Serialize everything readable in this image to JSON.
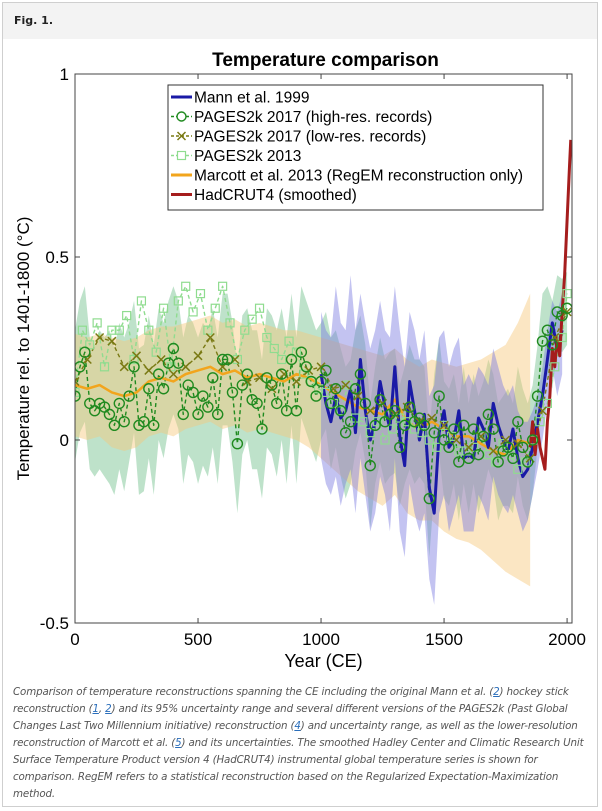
{
  "figure": {
    "label": "Fig. 1.",
    "caption_parts": [
      {
        "text": "Comparison of temperature reconstructions spanning the CE including the original Mann et al. ("
      },
      {
        "link": "2"
      },
      {
        "text": ") hockey stick reconstruction ("
      },
      {
        "link": "1"
      },
      {
        "text": ", "
      },
      {
        "link": "2"
      },
      {
        "text": ") and its 95% uncertainty range and several different versions of the PAGES2k (Past Global Changes Last Two Millennium initiative) reconstruction ("
      },
      {
        "link": "4"
      },
      {
        "text": ") and uncertainty range, as well as the lower-resolution reconstruction of Marcott et al. ("
      },
      {
        "link": "5"
      },
      {
        "text": ") and its uncertainties. The smoothed Hadley Center and Climatic Research Unit Surface Temperature Product version 4 (HadCRUT4) instrumental global temperature series is shown for comparison. RegEM refers to a statistical reconstruction based on the Regularized Expectation-Maximization method."
      }
    ]
  },
  "chart_data": {
    "type": "line",
    "title": "Temperature comparison",
    "xlabel": "Year (CE)",
    "ylabel": "Temperature rel. to 1401-1800 (°C)",
    "xlim": [
      0,
      2020
    ],
    "ylim": [
      -0.5,
      1
    ],
    "xticks": [
      0,
      500,
      1000,
      1500,
      2000
    ],
    "yticks": [
      -0.5,
      0,
      0.5,
      1
    ],
    "ytick_labels": [
      "-0.5",
      "0",
      "0.5",
      "1"
    ],
    "grid": false,
    "legend_position": "top-center",
    "series": [
      {
        "name": "Mann et al. 1999",
        "color": "#1a1aa6",
        "style": "line",
        "x": [
          1000,
          1020,
          1040,
          1060,
          1080,
          1100,
          1120,
          1140,
          1160,
          1180,
          1200,
          1220,
          1240,
          1260,
          1280,
          1300,
          1320,
          1340,
          1360,
          1380,
          1400,
          1420,
          1440,
          1460,
          1480,
          1500,
          1520,
          1540,
          1560,
          1580,
          1600,
          1620,
          1640,
          1660,
          1680,
          1700,
          1720,
          1740,
          1760,
          1780,
          1800,
          1820,
          1840,
          1860,
          1880,
          1900,
          1920,
          1940,
          1960,
          1980
        ],
        "y": [
          0.18,
          0.1,
          0.05,
          0.12,
          0.06,
          0.08,
          0.14,
          0.02,
          0.22,
          0.08,
          0.0,
          0.05,
          0.16,
          0.09,
          0.03,
          0.2,
          0.01,
          -0.07,
          0.16,
          0.08,
          0.0,
          0.07,
          -0.13,
          -0.2,
          0.02,
          0.08,
          -0.02,
          0.0,
          0.08,
          -0.05,
          -0.04,
          -0.05,
          0.06,
          0.03,
          -0.02,
          0.1,
          0.04,
          0.0,
          -0.03,
          0.03,
          -0.05,
          -0.1,
          -0.08,
          -0.02,
          0.05,
          0.12,
          0.22,
          0.32,
          0.25,
          0.3
        ],
        "band": {
          "color": "#7b7be0",
          "upper": [
            0.35,
            0.3,
            0.28,
            0.42,
            0.32,
            0.3,
            0.45,
            0.3,
            0.4,
            0.32,
            0.25,
            0.3,
            0.38,
            0.3,
            0.28,
            0.42,
            0.3,
            0.2,
            0.35,
            0.3,
            0.22,
            0.3,
            0.12,
            0.15,
            0.28,
            0.3,
            0.2,
            0.25,
            0.28,
            0.15,
            0.18,
            0.15,
            0.2,
            0.18,
            0.15,
            0.25,
            0.2,
            0.15,
            0.12,
            0.15,
            0.08,
            0.05,
            0.05,
            0.08,
            0.12,
            0.2,
            0.3,
            0.38,
            0.35,
            0.4
          ],
          "lower": [
            -0.05,
            -0.12,
            -0.15,
            -0.1,
            -0.18,
            -0.12,
            -0.08,
            -0.2,
            -0.05,
            -0.15,
            -0.25,
            -0.2,
            -0.1,
            -0.15,
            -0.25,
            -0.05,
            -0.25,
            -0.32,
            -0.12,
            -0.2,
            -0.25,
            -0.2,
            -0.38,
            -0.45,
            -0.2,
            -0.15,
            -0.25,
            -0.2,
            -0.15,
            -0.25,
            -0.25,
            -0.25,
            -0.15,
            -0.18,
            -0.22,
            -0.1,
            -0.15,
            -0.18,
            -0.2,
            -0.15,
            -0.2,
            -0.25,
            -0.22,
            -0.15,
            -0.08,
            0.0,
            0.1,
            0.2,
            0.12,
            0.18
          ]
        }
      },
      {
        "name": "PAGES2k 2017 (high-res. records)",
        "color": "#1f8a1f",
        "style": "dashed-circle",
        "x": [
          0,
          20,
          40,
          60,
          80,
          100,
          120,
          140,
          160,
          180,
          200,
          220,
          240,
          260,
          280,
          300,
          320,
          340,
          360,
          380,
          400,
          420,
          440,
          460,
          480,
          500,
          520,
          540,
          560,
          580,
          600,
          620,
          640,
          660,
          680,
          700,
          720,
          740,
          760,
          780,
          800,
          820,
          840,
          860,
          880,
          900,
          920,
          940,
          960,
          980,
          1000,
          1020,
          1040,
          1060,
          1080,
          1100,
          1120,
          1140,
          1160,
          1180,
          1200,
          1220,
          1240,
          1260,
          1280,
          1300,
          1320,
          1340,
          1360,
          1380,
          1400,
          1420,
          1440,
          1460,
          1480,
          1500,
          1520,
          1540,
          1560,
          1580,
          1600,
          1620,
          1640,
          1660,
          1680,
          1700,
          1720,
          1740,
          1760,
          1780,
          1800,
          1820,
          1840,
          1860,
          1880,
          1900,
          1920,
          1940,
          1960,
          1980,
          2000
        ],
        "y": [
          0.12,
          0.2,
          0.24,
          0.1,
          0.08,
          0.1,
          0.09,
          0.07,
          0.04,
          0.1,
          0.05,
          0.12,
          0.2,
          0.04,
          0.05,
          0.14,
          0.04,
          0.18,
          0.14,
          0.21,
          0.25,
          0.21,
          0.07,
          0.15,
          0.13,
          0.07,
          0.12,
          0.09,
          0.17,
          0.07,
          0.22,
          0.22,
          0.13,
          -0.01,
          0.15,
          0.18,
          0.11,
          0.1,
          0.03,
          0.17,
          0.15,
          0.1,
          0.18,
          0.08,
          0.22,
          0.08,
          0.24,
          0.2,
          0.16,
          0.12,
          0.16,
          0.19,
          0.1,
          0.14,
          0.08,
          0.02,
          0.05,
          0.14,
          0.18,
          0.1,
          -0.07,
          0.04,
          0.11,
          0.05,
          0.07,
          0.08,
          -0.02,
          0.04,
          0.09,
          0.05,
          0.06,
          0.04,
          -0.16,
          0.02,
          0.12,
          0.0,
          -0.02,
          0.03,
          -0.06,
          0.04,
          -0.05,
          0.03,
          -0.04,
          0.01,
          0.07,
          0.03,
          -0.06,
          -0.03,
          -0.02,
          -0.05,
          0.05,
          -0.02,
          -0.06,
          0.0,
          0.12,
          0.27,
          0.3,
          0.26,
          0.35,
          0.34,
          0.36
        ],
        "band": {
          "color": "#6fbf8a",
          "upper": [
            0.3,
            0.38,
            0.42,
            0.28,
            0.26,
            0.3,
            0.28,
            0.3,
            0.25,
            0.32,
            0.28,
            0.32,
            0.38,
            0.25,
            0.26,
            0.34,
            0.26,
            0.36,
            0.32,
            0.38,
            0.42,
            0.38,
            0.28,
            0.34,
            0.32,
            0.28,
            0.32,
            0.3,
            0.36,
            0.28,
            0.4,
            0.4,
            0.32,
            0.2,
            0.34,
            0.36,
            0.3,
            0.3,
            0.22,
            0.36,
            0.34,
            0.3,
            0.36,
            0.28,
            0.4,
            0.28,
            0.42,
            0.38,
            0.34,
            0.3,
            0.32,
            0.35,
            0.28,
            0.3,
            0.25,
            0.2,
            0.22,
            0.3,
            0.34,
            0.26,
            0.1,
            0.2,
            0.28,
            0.22,
            0.24,
            0.25,
            0.15,
            0.2,
            0.26,
            0.22,
            0.22,
            0.2,
            0.02,
            0.18,
            0.28,
            0.16,
            0.14,
            0.18,
            0.1,
            0.2,
            0.1,
            0.18,
            0.12,
            0.16,
            0.22,
            0.18,
            0.1,
            0.12,
            0.14,
            0.1,
            0.2,
            0.14,
            0.1,
            0.15,
            0.26,
            0.4,
            0.42,
            0.38,
            0.45,
            0.44,
            0.46
          ],
          "lower": [
            -0.06,
            0.02,
            0.05,
            -0.08,
            -0.1,
            -0.08,
            -0.1,
            -0.12,
            -0.15,
            -0.08,
            -0.14,
            -0.06,
            0.02,
            -0.15,
            -0.14,
            -0.05,
            -0.15,
            0.0,
            -0.05,
            0.03,
            0.07,
            0.03,
            -0.12,
            -0.04,
            -0.06,
            -0.12,
            -0.07,
            -0.1,
            -0.02,
            -0.12,
            0.04,
            0.04,
            -0.06,
            -0.2,
            -0.04,
            0.0,
            -0.08,
            -0.08,
            -0.16,
            -0.02,
            -0.04,
            -0.1,
            -0.0,
            -0.12,
            0.04,
            -0.12,
            0.06,
            0.02,
            -0.02,
            -0.06,
            0.0,
            0.03,
            -0.08,
            -0.02,
            -0.1,
            -0.16,
            -0.12,
            -0.03,
            0.02,
            -0.06,
            -0.24,
            -0.12,
            -0.06,
            -0.12,
            -0.1,
            -0.09,
            -0.18,
            -0.12,
            -0.08,
            -0.12,
            -0.1,
            -0.12,
            -0.32,
            -0.14,
            -0.04,
            -0.16,
            -0.18,
            -0.12,
            -0.22,
            -0.12,
            -0.2,
            -0.12,
            -0.2,
            -0.14,
            -0.08,
            -0.12,
            -0.22,
            -0.18,
            -0.18,
            -0.2,
            -0.1,
            -0.18,
            -0.22,
            -0.15,
            -0.02,
            0.14,
            0.18,
            0.14,
            0.25,
            0.24,
            0.26
          ]
        }
      },
      {
        "name": "PAGES2k 2017 (low-res. records)",
        "color": "#7a7a14",
        "style": "dashed-x",
        "x": [
          0,
          50,
          100,
          150,
          200,
          250,
          300,
          350,
          400,
          450,
          500,
          550,
          600,
          650,
          700,
          750,
          800,
          850,
          900,
          950,
          1000,
          1050,
          1100,
          1150,
          1200,
          1250,
          1300,
          1350,
          1400,
          1450,
          1500,
          1550,
          1600,
          1650,
          1700,
          1750,
          1800,
          1850,
          1900,
          1950,
          2000
        ],
        "y": [
          0.16,
          0.22,
          0.28,
          0.27,
          0.2,
          0.23,
          0.19,
          0.22,
          0.18,
          0.2,
          0.23,
          0.28,
          0.2,
          0.22,
          0.16,
          0.17,
          0.14,
          0.18,
          0.16,
          0.19,
          0.2,
          0.14,
          0.15,
          0.12,
          0.08,
          0.1,
          0.07,
          0.09,
          0.05,
          0.06,
          0.04,
          0.0,
          -0.02,
          0.01,
          -0.03,
          0.0,
          -0.01,
          -0.05,
          0.08,
          0.28,
          0.35
        ]
      },
      {
        "name": "PAGES2k 2013",
        "color": "#8fdc8f",
        "style": "dashed-square",
        "x": [
          0,
          30,
          60,
          90,
          120,
          150,
          180,
          210,
          240,
          270,
          300,
          330,
          360,
          390,
          420,
          450,
          480,
          510,
          540,
          570,
          600,
          630,
          660,
          690,
          720,
          750,
          780,
          810,
          840,
          870,
          900,
          930,
          960,
          990,
          1020,
          1050,
          1080,
          1110,
          1140,
          1170,
          1200,
          1230,
          1260,
          1290,
          1320,
          1350,
          1380,
          1410,
          1440,
          1470,
          1500,
          1530,
          1560,
          1590,
          1620,
          1650,
          1680,
          1710,
          1740,
          1770,
          1800,
          1830,
          1860,
          1890,
          1920,
          1950,
          1980,
          2000
        ],
        "y": [
          0.13,
          0.3,
          0.26,
          0.32,
          0.2,
          0.3,
          0.3,
          0.34,
          0.22,
          0.38,
          0.3,
          0.24,
          0.36,
          0.2,
          0.38,
          0.42,
          0.35,
          0.4,
          0.3,
          0.36,
          0.42,
          0.32,
          0.22,
          0.3,
          0.33,
          0.36,
          0.28,
          0.25,
          0.22,
          0.27,
          0.24,
          0.18,
          0.16,
          0.14,
          0.13,
          0.1,
          0.08,
          0.15,
          0.06,
          0.05,
          0.02,
          0.05,
          0.0,
          0.03,
          0.06,
          0.05,
          0.03,
          0.02,
          0.0,
          -0.02,
          0.04,
          0.01,
          -0.03,
          -0.03,
          -0.02,
          0.01,
          -0.04,
          -0.06,
          -0.01,
          -0.04,
          -0.08,
          -0.06,
          0.0,
          0.05,
          0.1,
          0.2,
          0.28,
          0.4
        ]
      },
      {
        "name": "Marcott et al. 2013 (RegEM reconstruction only)",
        "color": "#f2a51d",
        "style": "line",
        "x": [
          0,
          50,
          100,
          150,
          200,
          250,
          300,
          350,
          400,
          450,
          500,
          550,
          600,
          650,
          700,
          750,
          800,
          850,
          900,
          950,
          1000,
          1050,
          1100,
          1150,
          1200,
          1250,
          1300,
          1350,
          1400,
          1450,
          1500,
          1550,
          1600,
          1650,
          1700,
          1750,
          1800,
          1850
        ],
        "y": [
          0.15,
          0.14,
          0.15,
          0.13,
          0.12,
          0.13,
          0.16,
          0.17,
          0.16,
          0.18,
          0.19,
          0.2,
          0.18,
          0.19,
          0.17,
          0.18,
          0.17,
          0.16,
          0.18,
          0.17,
          0.15,
          0.13,
          0.11,
          0.09,
          0.08,
          0.07,
          0.11,
          0.05,
          0.03,
          0.05,
          0.03,
          0.01,
          0.01,
          -0.01,
          -0.03,
          -0.04,
          0.0,
          -0.01
        ],
        "band": {
          "color": "#f7c87a",
          "upper": [
            0.29,
            0.28,
            0.29,
            0.28,
            0.27,
            0.28,
            0.3,
            0.31,
            0.31,
            0.32,
            0.33,
            0.34,
            0.32,
            0.33,
            0.31,
            0.32,
            0.31,
            0.3,
            0.3,
            0.29,
            0.28,
            0.27,
            0.26,
            0.25,
            0.24,
            0.23,
            0.25,
            0.22,
            0.2,
            0.22,
            0.21,
            0.2,
            0.21,
            0.22,
            0.24,
            0.26,
            0.32,
            0.4
          ],
          "lower": [
            0.01,
            0.0,
            0.01,
            -0.02,
            -0.03,
            -0.02,
            0.01,
            0.02,
            0.01,
            0.03,
            0.04,
            0.05,
            0.03,
            0.04,
            0.02,
            0.03,
            0.02,
            0.01,
            0.0,
            -0.02,
            -0.05,
            -0.08,
            -0.11,
            -0.14,
            -0.16,
            -0.18,
            -0.15,
            -0.2,
            -0.22,
            -0.22,
            -0.25,
            -0.27,
            -0.28,
            -0.3,
            -0.33,
            -0.36,
            -0.38,
            -0.4
          ]
        }
      },
      {
        "name": "HadCRUT4 (smoothed)",
        "color": "#a51d1d",
        "style": "line",
        "x": [
          1850,
          1860,
          1870,
          1880,
          1890,
          1900,
          1910,
          1920,
          1930,
          1940,
          1950,
          1960,
          1970,
          1980,
          1990,
          2000,
          2010,
          2015
        ],
        "y": [
          -0.02,
          0.05,
          -0.04,
          0.03,
          -0.02,
          -0.05,
          -0.08,
          0.05,
          0.12,
          0.25,
          0.2,
          0.28,
          0.23,
          0.35,
          0.45,
          0.6,
          0.75,
          0.82
        ]
      }
    ]
  }
}
